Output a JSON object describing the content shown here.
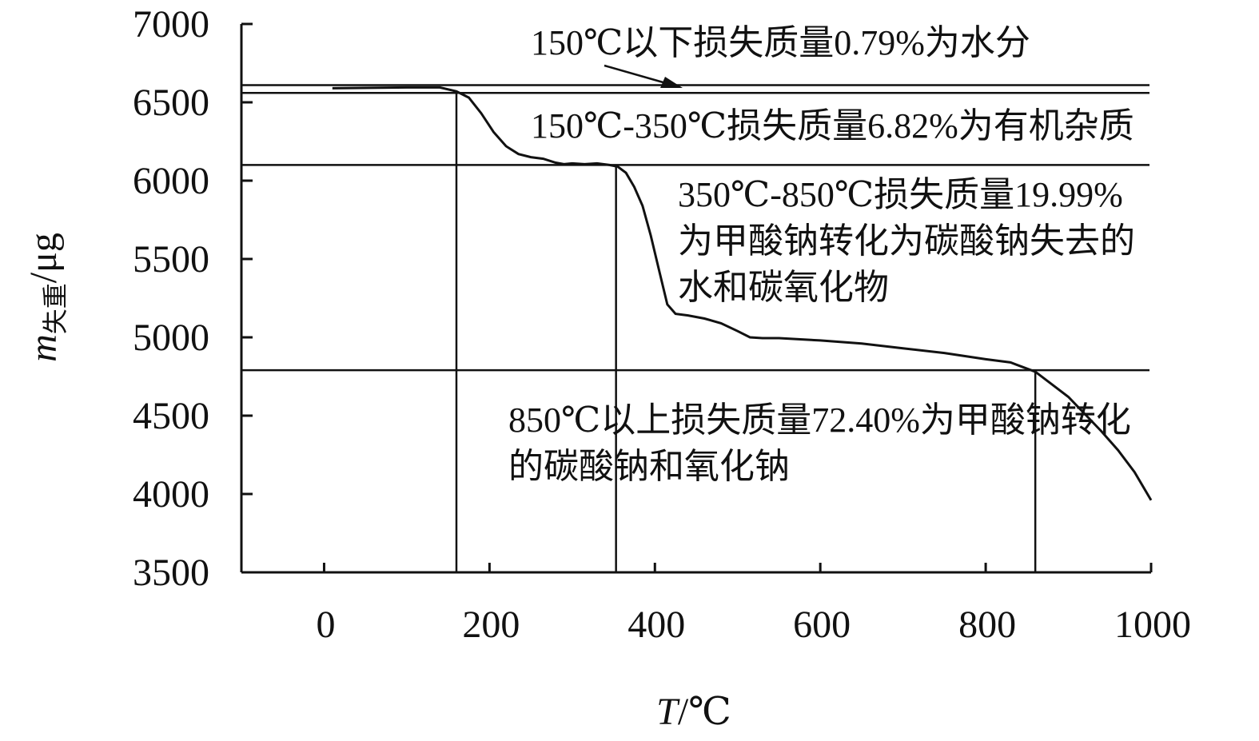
{
  "chart_data": {
    "type": "line",
    "title": "",
    "xlabel": "T/℃",
    "ylabel": "m失重/μg",
    "ylabel_parts": {
      "var": "m",
      "sub": "失重",
      "unit": "/μg"
    },
    "xlabel_parts": {
      "var": "T",
      "unit": "/℃"
    },
    "xlim": [
      -100,
      1000
    ],
    "ylim": [
      3500,
      7000
    ],
    "x_ticks": [
      0,
      200,
      400,
      600,
      800,
      1000
    ],
    "y_ticks": [
      3500,
      4000,
      4500,
      5000,
      5500,
      6000,
      6500,
      7000
    ],
    "grid": false,
    "series": [
      {
        "x": [
          10,
          100,
          140,
          160,
          175,
          190,
          205,
          220,
          235,
          250,
          265,
          280,
          290,
          300,
          315,
          330,
          345,
          355,
          365,
          375,
          385,
          395,
          405,
          415,
          425,
          440,
          460,
          480,
          500,
          515,
          530,
          550,
          600,
          650,
          700,
          750,
          800,
          830,
          850,
          860,
          880,
          900,
          920,
          940,
          960,
          980,
          1000
        ],
        "y": [
          6590,
          6595,
          6595,
          6570,
          6530,
          6430,
          6310,
          6220,
          6170,
          6150,
          6140,
          6115,
          6105,
          6110,
          6105,
          6110,
          6100,
          6090,
          6050,
          5960,
          5840,
          5650,
          5430,
          5210,
          5150,
          5140,
          5120,
          5090,
          5040,
          5000,
          4995,
          4995,
          4980,
          4960,
          4930,
          4900,
          4860,
          4840,
          4800,
          4780,
          4700,
          4620,
          4510,
          4400,
          4280,
          4140,
          3960
        ]
      }
    ],
    "reference_lines": {
      "horizontal": [
        6610,
        6560,
        6100,
        4790
      ],
      "vertical": [
        160,
        353,
        860
      ]
    },
    "annotations": [
      {
        "id": "a1",
        "lines": [
          "150℃以下损失质量0.79%为水分"
        ]
      },
      {
        "id": "a2",
        "lines": [
          "150℃-350℃损失质量6.82%为有机杂质"
        ]
      },
      {
        "id": "a3",
        "lines": [
          "350℃-850℃损失质量19.99%",
          "为甲酸钠转化为碳酸钠失去的",
          "水和碳氧化物"
        ]
      },
      {
        "id": "a4",
        "lines": [
          "850℃以上损失质量72.40%为甲酸钠转化",
          "的碳酸钠和氧化钠"
        ]
      }
    ]
  }
}
